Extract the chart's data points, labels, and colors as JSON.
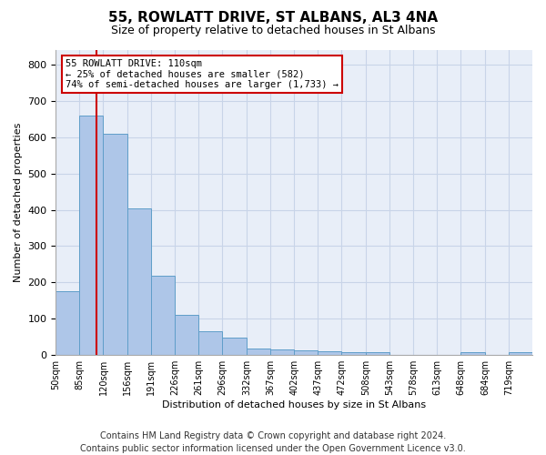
{
  "title": "55, ROWLATT DRIVE, ST ALBANS, AL3 4NA",
  "subtitle": "Size of property relative to detached houses in St Albans",
  "xlabel": "Distribution of detached houses by size in St Albans",
  "ylabel": "Number of detached properties",
  "bar_color": "#aec6e8",
  "bar_edge_color": "#5f9ec9",
  "grid_color": "#c8d4e8",
  "background_color": "#e8eef8",
  "property_line_x": 110,
  "property_line_color": "#cc0000",
  "annotation_box_edge_color": "#cc0000",
  "annotation_text": "55 ROWLATT DRIVE: 110sqm\n← 25% of detached houses are smaller (582)\n74% of semi-detached houses are larger (1,733) →",
  "bin_edges": [
    50,
    85,
    120,
    156,
    191,
    226,
    261,
    296,
    332,
    367,
    402,
    437,
    472,
    508,
    543,
    578,
    613,
    648,
    684,
    719,
    754
  ],
  "bar_heights": [
    175,
    660,
    610,
    405,
    218,
    110,
    65,
    49,
    18,
    16,
    14,
    11,
    8,
    7,
    0,
    0,
    0,
    7,
    0,
    8
  ],
  "ylim": [
    0,
    840
  ],
  "yticks": [
    0,
    100,
    200,
    300,
    400,
    500,
    600,
    700,
    800
  ],
  "title_fontsize": 11,
  "subtitle_fontsize": 9,
  "ylabel_fontsize": 8,
  "xlabel_fontsize": 8,
  "tick_fontsize": 7,
  "footer": "Contains HM Land Registry data © Crown copyright and database right 2024.\nContains public sector information licensed under the Open Government Licence v3.0.",
  "footer_fontsize": 7
}
